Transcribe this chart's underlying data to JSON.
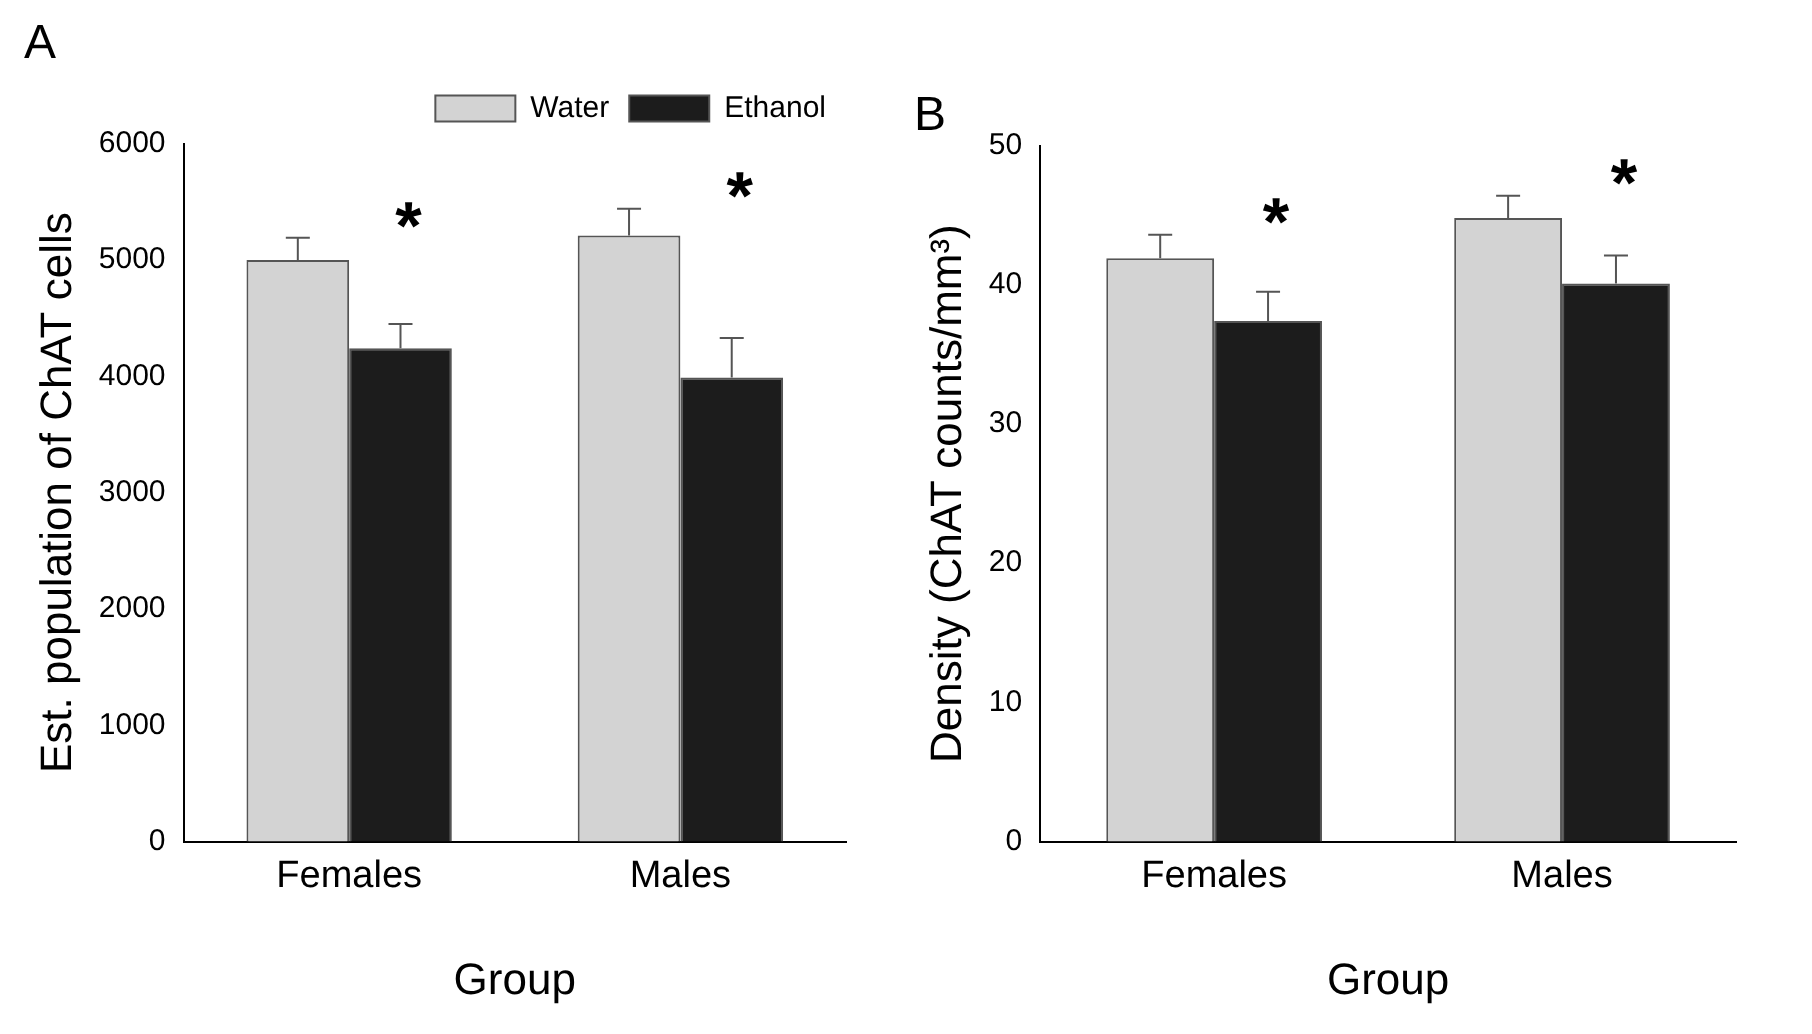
{
  "chart_data": [
    {
      "type": "bar",
      "title": "A",
      "xlabel": "Group",
      "ylabel": "Est. population of ChAT cells",
      "categories": [
        "Females",
        "Males"
      ],
      "series": [
        {
          "name": "Water",
          "color": "#d3d3d3",
          "values": [
            5000,
            5210
          ],
          "errors": [
            [
              5000,
              5190
            ],
            [
              5210,
              5440
            ]
          ]
        },
        {
          "name": "Ethanol",
          "color": "#1c1c1c",
          "values": [
            4240,
            3990
          ],
          "errors": [
            [
              4240,
              4450
            ],
            [
              3990,
              4330
            ]
          ]
        }
      ],
      "ylim": [
        0,
        6000
      ],
      "yticks": [
        0,
        1000,
        2000,
        3000,
        4000,
        5000,
        6000
      ],
      "grid": false,
      "legend": "top right",
      "annotations": [
        "*",
        "*"
      ]
    },
    {
      "type": "bar",
      "title": "B",
      "xlabel": "Group",
      "ylabel": "Density (ChAT counts/mm³)",
      "categories": [
        "Females",
        "Males"
      ],
      "series": [
        {
          "color": "#d3d3d3",
          "values": [
            41.9,
            44.8
          ],
          "errors": [
            [
              41.9,
              43.6
            ],
            [
              44.8,
              46.4
            ]
          ]
        },
        {
          "color": "#1c1c1c",
          "values": [
            37.4,
            40.1
          ],
          "errors": [
            [
              37.4,
              39.5
            ],
            [
              40.1,
              42.1
            ]
          ]
        }
      ],
      "ylim": [
        0,
        50
      ],
      "yticks": [
        0,
        10,
        20,
        30,
        40,
        50
      ],
      "grid": false,
      "legend": false,
      "annotations": [
        "*",
        "*"
      ]
    }
  ]
}
